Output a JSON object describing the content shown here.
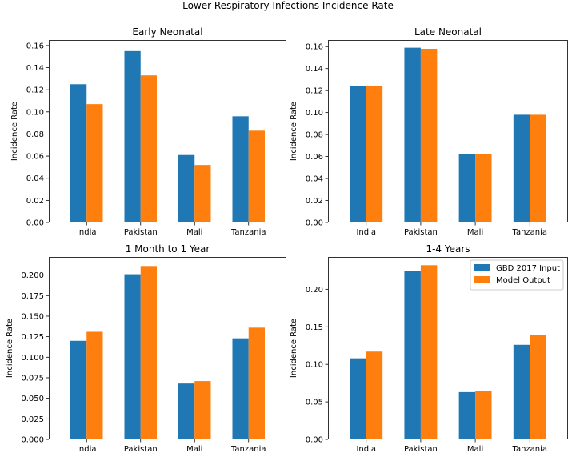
{
  "figure": {
    "suptitle": "Lower Respiratory Infections Incidence Rate"
  },
  "colors": {
    "series_1": "#1f77b4",
    "series_2": "#ff7f0e"
  },
  "chart_data": [
    {
      "type": "bar",
      "title": "Early Neonatal",
      "xlabel": "",
      "ylabel": "Incidence Rate",
      "categories": [
        "India",
        "Pakistan",
        "Mali",
        "Tanzania"
      ],
      "ylim": [
        0,
        0.165
      ],
      "yticks": [
        0.0,
        0.02,
        0.04,
        0.06,
        0.08,
        0.1,
        0.12,
        0.14,
        0.16
      ],
      "ytick_labels": [
        "0.00",
        "0.02",
        "0.04",
        "0.06",
        "0.08",
        "0.10",
        "0.12",
        "0.14",
        "0.16"
      ],
      "series": [
        {
          "name": "GBD 2017 Input",
          "values": [
            0.125,
            0.155,
            0.061,
            0.096
          ]
        },
        {
          "name": "Model Output",
          "values": [
            0.107,
            0.133,
            0.052,
            0.083
          ]
        }
      ],
      "legend": null
    },
    {
      "type": "bar",
      "title": "Late Neonatal",
      "xlabel": "",
      "ylabel": "Incidence Rate",
      "categories": [
        "India",
        "Pakistan",
        "Mali",
        "Tanzania"
      ],
      "ylim": [
        0,
        0.166
      ],
      "yticks": [
        0.0,
        0.02,
        0.04,
        0.06,
        0.08,
        0.1,
        0.12,
        0.14,
        0.16
      ],
      "ytick_labels": [
        "0.00",
        "0.02",
        "0.04",
        "0.06",
        "0.08",
        "0.10",
        "0.12",
        "0.14",
        "0.16"
      ],
      "series": [
        {
          "name": "GBD 2017 Input",
          "values": [
            0.124,
            0.159,
            0.062,
            0.098
          ]
        },
        {
          "name": "Model Output",
          "values": [
            0.124,
            0.158,
            0.062,
            0.098
          ]
        }
      ],
      "legend": null
    },
    {
      "type": "bar",
      "title": "1 Month to 1 Year",
      "xlabel": "",
      "ylabel": "Incidence Rate",
      "categories": [
        "India",
        "Pakistan",
        "Mali",
        "Tanzania"
      ],
      "ylim": [
        0,
        0.222
      ],
      "yticks": [
        0.0,
        0.025,
        0.05,
        0.075,
        0.1,
        0.125,
        0.15,
        0.175,
        0.2
      ],
      "ytick_labels": [
        "0.000",
        "0.025",
        "0.050",
        "0.075",
        "0.100",
        "0.125",
        "0.150",
        "0.175",
        "0.200"
      ],
      "series": [
        {
          "name": "GBD 2017 Input",
          "values": [
            0.12,
            0.201,
            0.068,
            0.123
          ]
        },
        {
          "name": "Model Output",
          "values": [
            0.131,
            0.211,
            0.071,
            0.136
          ]
        }
      ],
      "legend": null
    },
    {
      "type": "bar",
      "title": "1-4 Years",
      "xlabel": "",
      "ylabel": "Incidence Rate",
      "categories": [
        "India",
        "Pakistan",
        "Mali",
        "Tanzania"
      ],
      "ylim": [
        0,
        0.243
      ],
      "yticks": [
        0.0,
        0.05,
        0.1,
        0.15,
        0.2
      ],
      "ytick_labels": [
        "0.00",
        "0.05",
        "0.10",
        "0.15",
        "0.20"
      ],
      "series": [
        {
          "name": "GBD 2017 Input",
          "values": [
            0.108,
            0.224,
            0.063,
            0.126
          ]
        },
        {
          "name": "Model Output",
          "values": [
            0.117,
            0.232,
            0.065,
            0.139
          ]
        }
      ],
      "legend": "top-right"
    }
  ]
}
